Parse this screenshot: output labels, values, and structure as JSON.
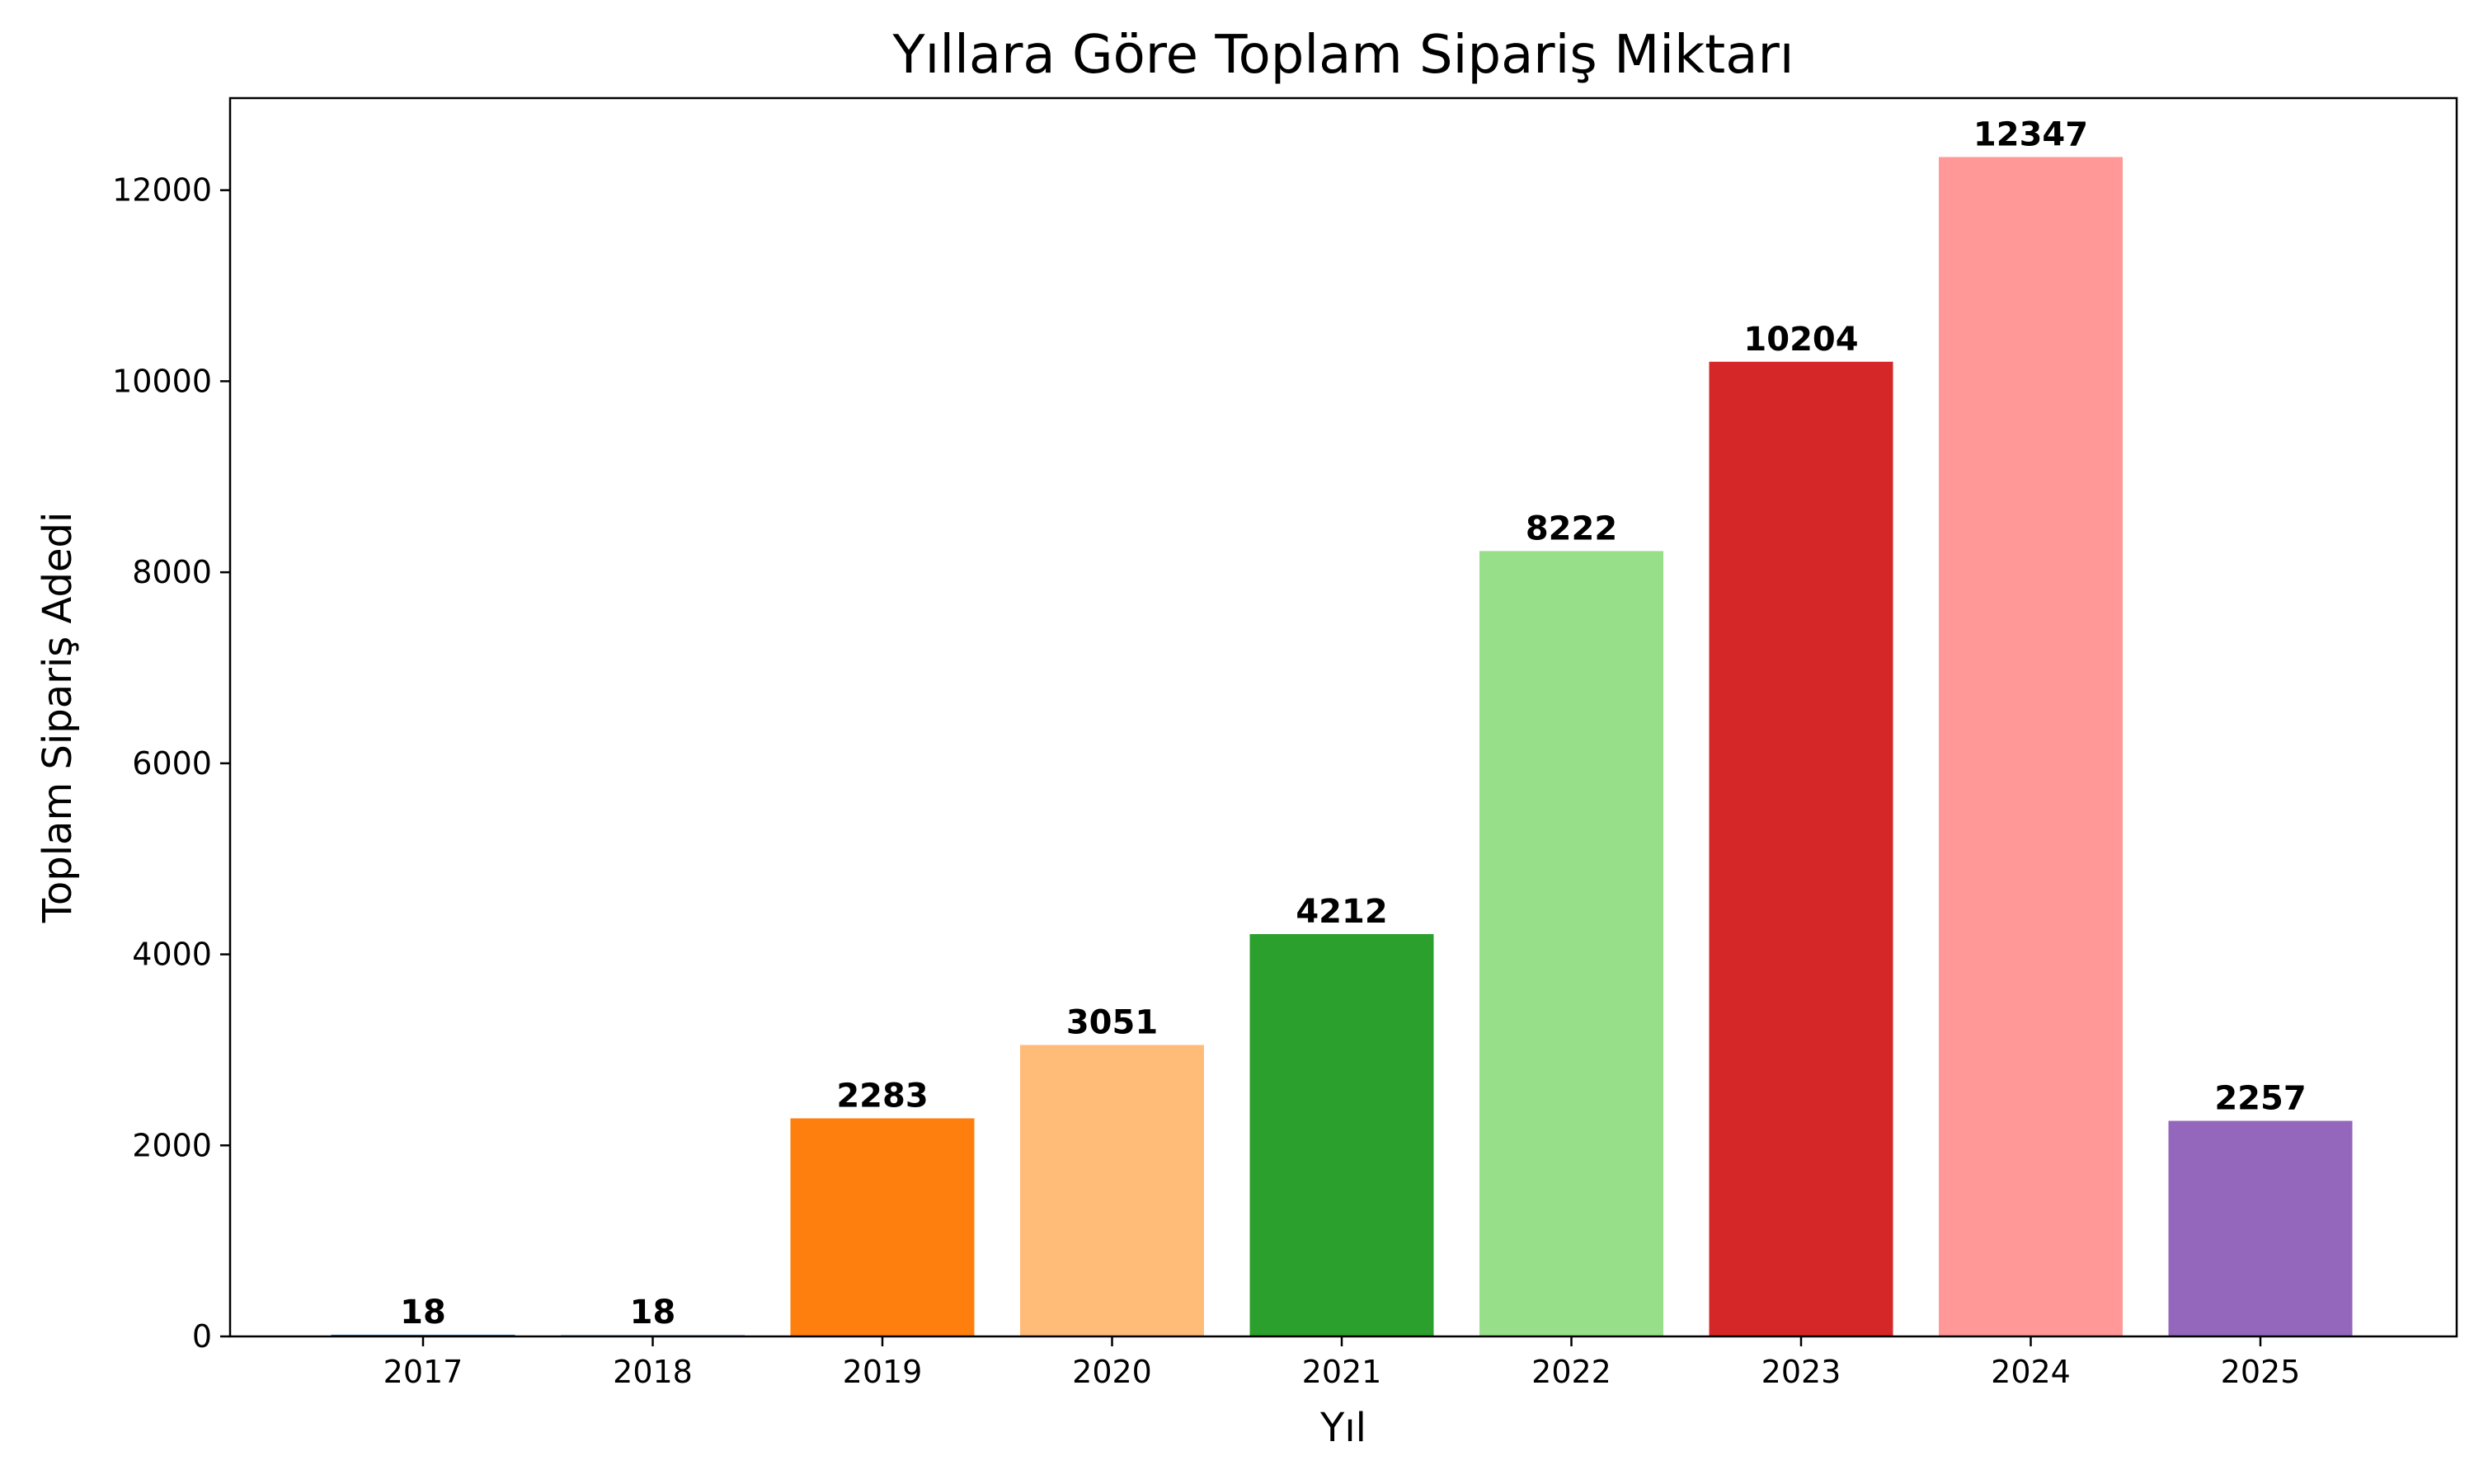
{
  "chart_data": {
    "type": "bar",
    "title": "Yıllara Göre Toplam Sipariş Miktarı",
    "xlabel": "Yıl",
    "ylabel": "Toplam Sipariş Adedi",
    "categories": [
      "2017",
      "2018",
      "2019",
      "2020",
      "2021",
      "2022",
      "2023",
      "2024",
      "2025"
    ],
    "values": [
      18,
      18,
      2283,
      3051,
      4212,
      8222,
      10204,
      12347,
      2257
    ],
    "data_labels": [
      "18",
      "18",
      "2283",
      "3051",
      "4212",
      "8222",
      "10204",
      "12347",
      "2257"
    ],
    "colors": [
      "#1f77b4",
      "#aec7e8",
      "#ff7f0e",
      "#ffbb78",
      "#2ca02c",
      "#98df8a",
      "#d62728",
      "#ff9896",
      "#9467bd"
    ],
    "ylim": [
      0,
      12964
    ],
    "yticks": [
      0,
      2000,
      4000,
      6000,
      8000,
      10000,
      12000
    ],
    "ytick_labels": [
      "0",
      "2000",
      "4000",
      "6000",
      "8000",
      "10000",
      "12000"
    ],
    "grid": false,
    "legend": "none"
  }
}
